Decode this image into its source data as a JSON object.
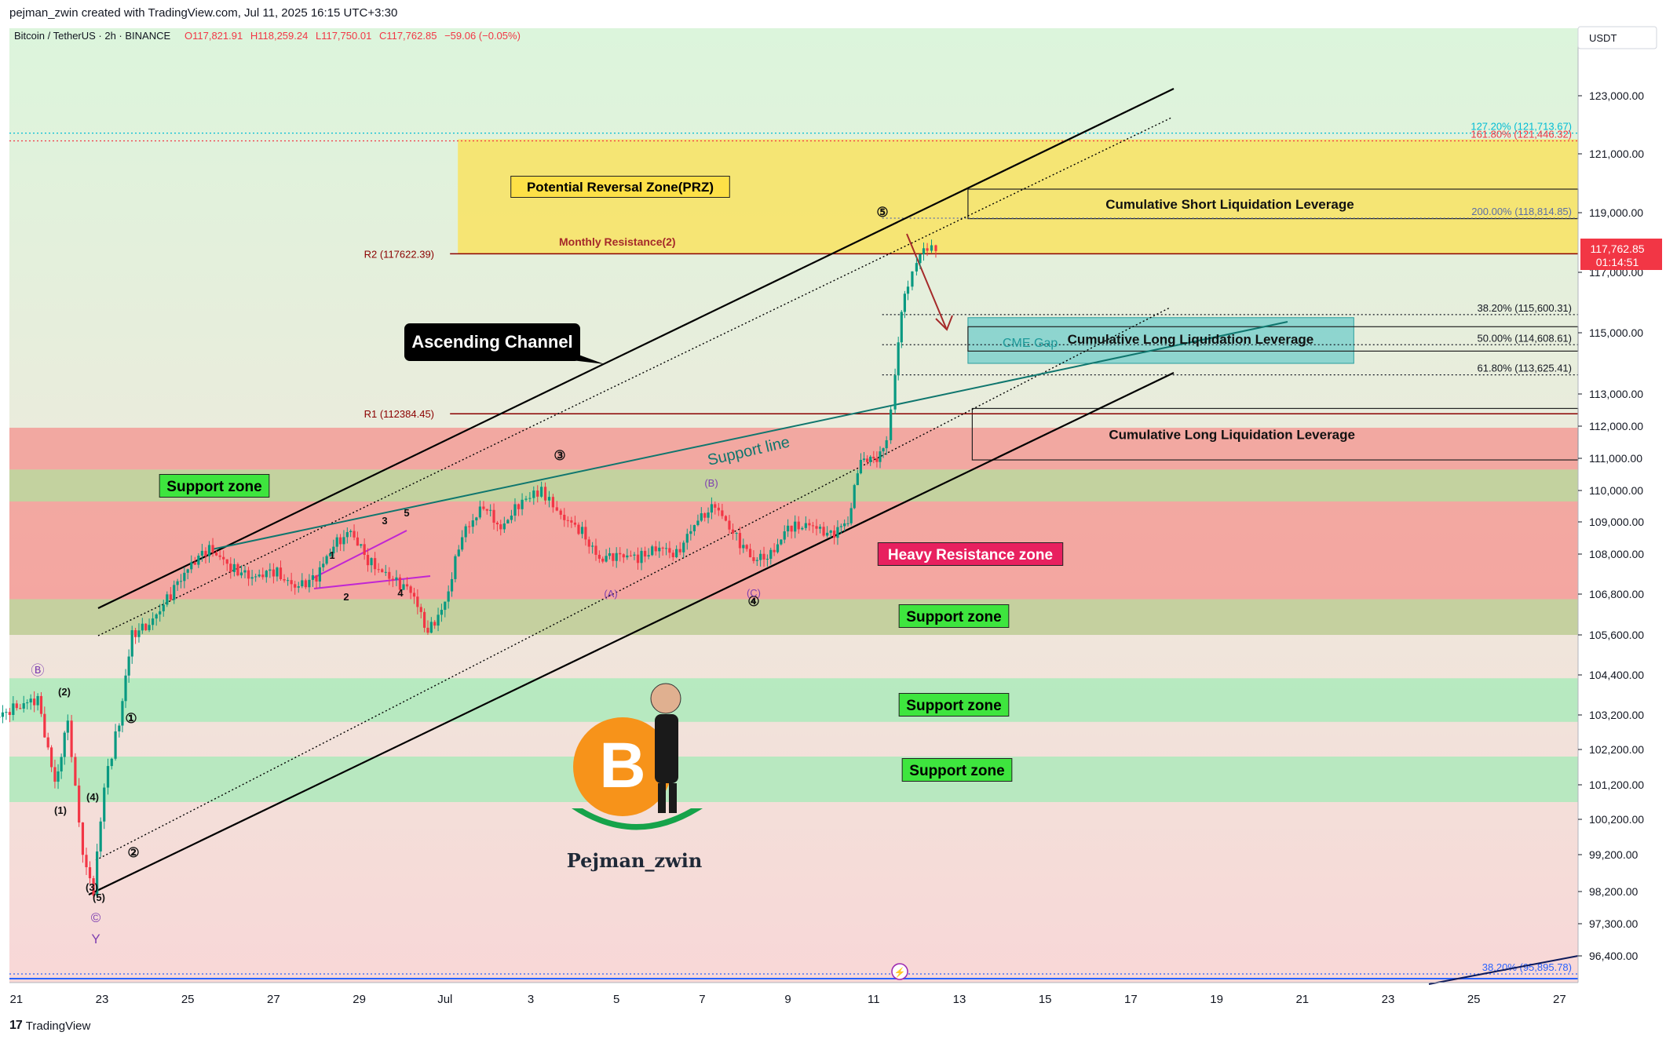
{
  "header": {
    "attribution": "pejman_zwin created with TradingView.com, Jul 11, 2025 16:15 UTC+3:30",
    "symbol": "Bitcoin / TetherUS · 2h · BINANCE",
    "ohlc": {
      "o": "O117,821.91",
      "h": "H118,259.24",
      "l": "L117,750.01",
      "c": "C117,762.85",
      "change": "−59.06 (−0.05%)"
    }
  },
  "footer": {
    "brand": "TradingView"
  },
  "colors": {
    "up": "#089981",
    "down": "#f23645",
    "support": "#22c55e",
    "resistance": "#f87171",
    "prz": "#fde047",
    "cme": "#5ec8c8",
    "channel": "#000000",
    "support_line": "#0f766e",
    "heavy_res": "#e11d48",
    "price_tag": "#f23645",
    "fib_blue": "#2962ff",
    "fib_cyan": "#00bcd4"
  },
  "chart_data": {
    "type": "candlestick",
    "currency_label": "USDT",
    "y_ticks": [
      "123,000.00",
      "121,000.00",
      "119,000.00",
      "117,000.00",
      "115,000.00",
      "113,000.00",
      "112,000.00",
      "111,000.00",
      "110,000.00",
      "109,000.00",
      "108,000.00",
      "106,800.00",
      "105,600.00",
      "104,400.00",
      "103,200.00",
      "102,200.00",
      "101,200.00",
      "100,200.00",
      "99,200.00",
      "98,200.00",
      "97,300.00",
      "96,400.00"
    ],
    "y_tick_values": [
      123000,
      121000,
      119000,
      117000,
      115000,
      113000,
      112000,
      111000,
      110000,
      109000,
      108000,
      106800,
      105600,
      104400,
      103200,
      102200,
      101200,
      100200,
      99200,
      98200,
      97300,
      96400
    ],
    "x_ticks": [
      "21",
      "23",
      "25",
      "27",
      "29",
      "Jul",
      "3",
      "5",
      "7",
      "9",
      "11",
      "13",
      "15",
      "17",
      "19",
      "21",
      "23",
      "25",
      "27"
    ],
    "x_tick_days": [
      -10,
      -8,
      -6,
      -4,
      -2,
      0,
      2,
      4,
      6,
      8,
      10,
      12,
      14,
      16,
      18,
      20,
      22,
      24,
      26
    ],
    "last_price": {
      "value": "117,762.85",
      "countdown": "01:14:51"
    },
    "price_path": [
      [
        -11,
        102800
      ],
      [
        -10.4,
        103200
      ],
      [
        -9.5,
        103700
      ],
      [
        -9.1,
        101200
      ],
      [
        -8.8,
        103000
      ],
      [
        -8.45,
        99200
      ],
      [
        -8.2,
        98200
      ],
      [
        -7.95,
        101200
      ],
      [
        -7.6,
        103000
      ],
      [
        -7.3,
        105600
      ],
      [
        -6.9,
        105900
      ],
      [
        -6.4,
        106800
      ],
      [
        -6,
        107600
      ],
      [
        -5.5,
        108200
      ],
      [
        -5,
        107600
      ],
      [
        -4.5,
        107300
      ],
      [
        -4,
        107500
      ],
      [
        -3.5,
        107000
      ],
      [
        -3,
        107300
      ],
      [
        -2.6,
        108300
      ],
      [
        -2.2,
        108700
      ],
      [
        -1.8,
        107800
      ],
      [
        -1.3,
        107300
      ],
      [
        -0.8,
        106900
      ],
      [
        -0.4,
        105700
      ],
      [
        0,
        106500
      ],
      [
        0.4,
        108600
      ],
      [
        0.9,
        109500
      ],
      [
        1.3,
        108800
      ],
      [
        1.8,
        109700
      ],
      [
        2.25,
        110000
      ],
      [
        2.7,
        109200
      ],
      [
        3.2,
        108700
      ],
      [
        3.6,
        107800
      ],
      [
        4,
        108000
      ],
      [
        4.5,
        107900
      ],
      [
        5,
        108200
      ],
      [
        5.4,
        108000
      ],
      [
        5.9,
        109100
      ],
      [
        6.3,
        109500
      ],
      [
        6.8,
        108500
      ],
      [
        7.2,
        107800
      ],
      [
        7.6,
        108000
      ],
      [
        8.0,
        108800
      ],
      [
        8.5,
        108900
      ],
      [
        9.0,
        108600
      ],
      [
        9.4,
        109000
      ],
      [
        9.7,
        111000
      ],
      [
        10.0,
        110900
      ],
      [
        10.3,
        111500
      ],
      [
        10.5,
        113600
      ],
      [
        10.65,
        115800
      ],
      [
        10.8,
        116500
      ],
      [
        11.0,
        117400
      ],
      [
        11.25,
        117900
      ],
      [
        11.45,
        117763
      ]
    ],
    "price_levels": [
      {
        "label": "R2 (117622.39)",
        "value": 117622.39,
        "color": "#8b0000"
      },
      {
        "label": "R1 (112384.45)",
        "value": 112384.45,
        "color": "#8b0000"
      }
    ],
    "fib_levels": [
      {
        "label": "127.20% (121,713.67)",
        "value": 121713.67,
        "color": "#00bcd4"
      },
      {
        "label": "161.80% (121,446.32)",
        "value": 121446.32,
        "color": "#f23645"
      },
      {
        "label": "200.00% (118,814.85)",
        "value": 118814.85,
        "color": "#5b6ea8"
      },
      {
        "label": "38.20% (115,600.31)",
        "value": 115600.31,
        "color": "#131722"
      },
      {
        "label": "50.00% (114,608.61)",
        "value": 114608.61,
        "color": "#131722"
      },
      {
        "label": "61.80% (113,625.41)",
        "value": 113625.41,
        "color": "#131722"
      },
      {
        "label": "38.20% (95,895.78)",
        "value": 95895.78,
        "color": "#2962ff"
      }
    ],
    "zones": [
      {
        "name": "prz",
        "label": "Potential Reversal Zone(PRZ)",
        "from_day": 0.3,
        "to_day": 27.5,
        "y_top": 121500,
        "y_bottom": 117622,
        "color": "#fde047"
      },
      {
        "name": "monthly-resistance",
        "label": "Monthly Resistance(2)",
        "value": 117622.39
      },
      {
        "name": "resistance-zone-1",
        "from_day": -11,
        "to_day": 27.5,
        "y_top": 111950,
        "y_bottom": 110650,
        "color": "#f87171"
      },
      {
        "name": "support-zone-1",
        "label": "Support zone",
        "from_day": -11,
        "to_day": 27.5,
        "y_top": 110650,
        "y_bottom": 109650,
        "color": "#a3be6e"
      },
      {
        "name": "heavy-resistance-zone",
        "label": "Heavy Resistance zone",
        "from_day": -11,
        "to_day": 27.5,
        "y_top": 109650,
        "y_bottom": 106650,
        "color": "#f87171"
      },
      {
        "name": "support-zone-2",
        "label": "Support zone",
        "from_day": -11,
        "to_day": 27.5,
        "y_top": 106650,
        "y_bottom": 105600,
        "color": "#a3be6e"
      },
      {
        "name": "support-zone-3",
        "label": "Support zone",
        "from_day": -11,
        "to_day": 27.5,
        "y_top": 104300,
        "y_bottom": 103000,
        "color": "#86efac"
      },
      {
        "name": "support-zone-4",
        "label": "Support zone",
        "from_day": -11,
        "to_day": 27.5,
        "y_top": 102000,
        "y_bottom": 100700,
        "color": "#86efac"
      },
      {
        "name": "cme-gap",
        "label": "CME Gap",
        "from_day": 12.2,
        "to_day": 21.2,
        "y_top": 115500,
        "y_bottom": 114000,
        "color": "#5ec8c8"
      }
    ],
    "liquidation_boxes": [
      {
        "label": "Cumulative Short Liquidation Leverage",
        "from_day": 12.2,
        "to_day": 27.5,
        "y_top": 119800,
        "y_bottom": 118800
      },
      {
        "label": "Cumulative Long Liquidation Leverage",
        "from_day": 12.2,
        "to_day": 27.5,
        "y_top": 115200,
        "y_bottom": 114400
      },
      {
        "label": "Cumulative Long Liquidation Leverage",
        "from_day": 12.3,
        "to_day": 27.5,
        "y_top": 112550,
        "y_bottom": 110950
      }
    ],
    "annotations": {
      "ascending_channel": "Ascending Channel",
      "support_line": "Support line",
      "wave_labels": [
        "①",
        "②",
        "③",
        "④",
        "⑤",
        "(1)",
        "(2)",
        "(3)",
        "(4)",
        "(5)",
        "1",
        "2",
        "3",
        "4",
        "5",
        "(A)",
        "(B)",
        "(C)",
        "Ⓑ",
        "©",
        "Y"
      ],
      "author": "Pejman_zwin"
    }
  }
}
